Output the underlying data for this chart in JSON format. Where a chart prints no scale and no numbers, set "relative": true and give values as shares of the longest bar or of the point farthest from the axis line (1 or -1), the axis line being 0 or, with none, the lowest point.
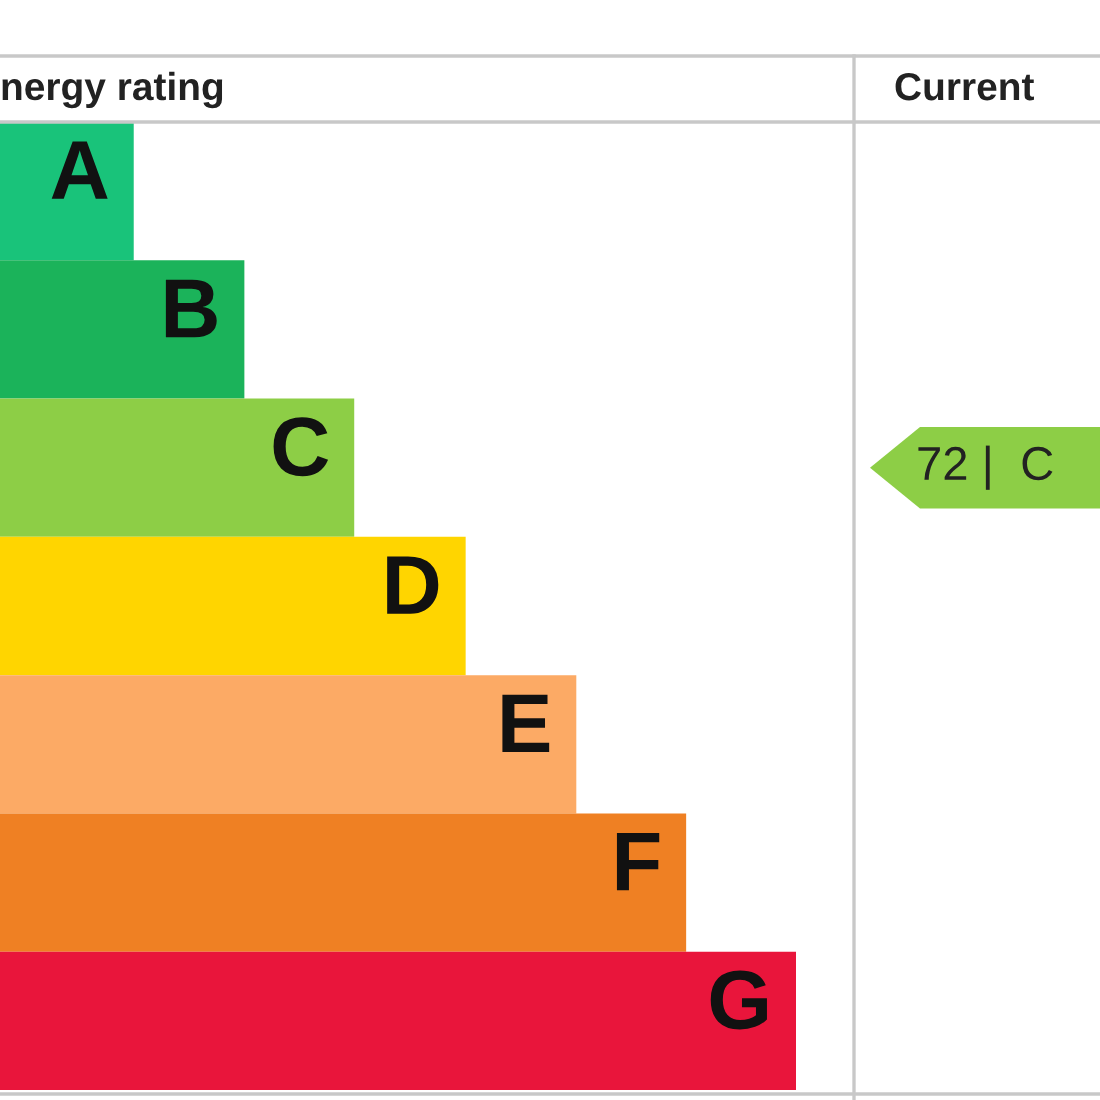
{
  "chart_data": {
    "type": "bar",
    "orientation": "horizontal",
    "relative": true,
    "title": "nergy rating",
    "categories": [
      "A",
      "B",
      "C",
      "D",
      "E",
      "F",
      "G"
    ],
    "values": [
      0.168,
      0.307,
      0.445,
      0.585,
      0.724,
      0.862,
      1
    ],
    "colors": [
      "#19c37a",
      "#1bb35a",
      "#8dce46",
      "#ffd500",
      "#fcaa65",
      "#ef8023",
      "#e9153b"
    ],
    "annotations": [
      "Current",
      "72 |  C"
    ],
    "legend": false
  }
}
